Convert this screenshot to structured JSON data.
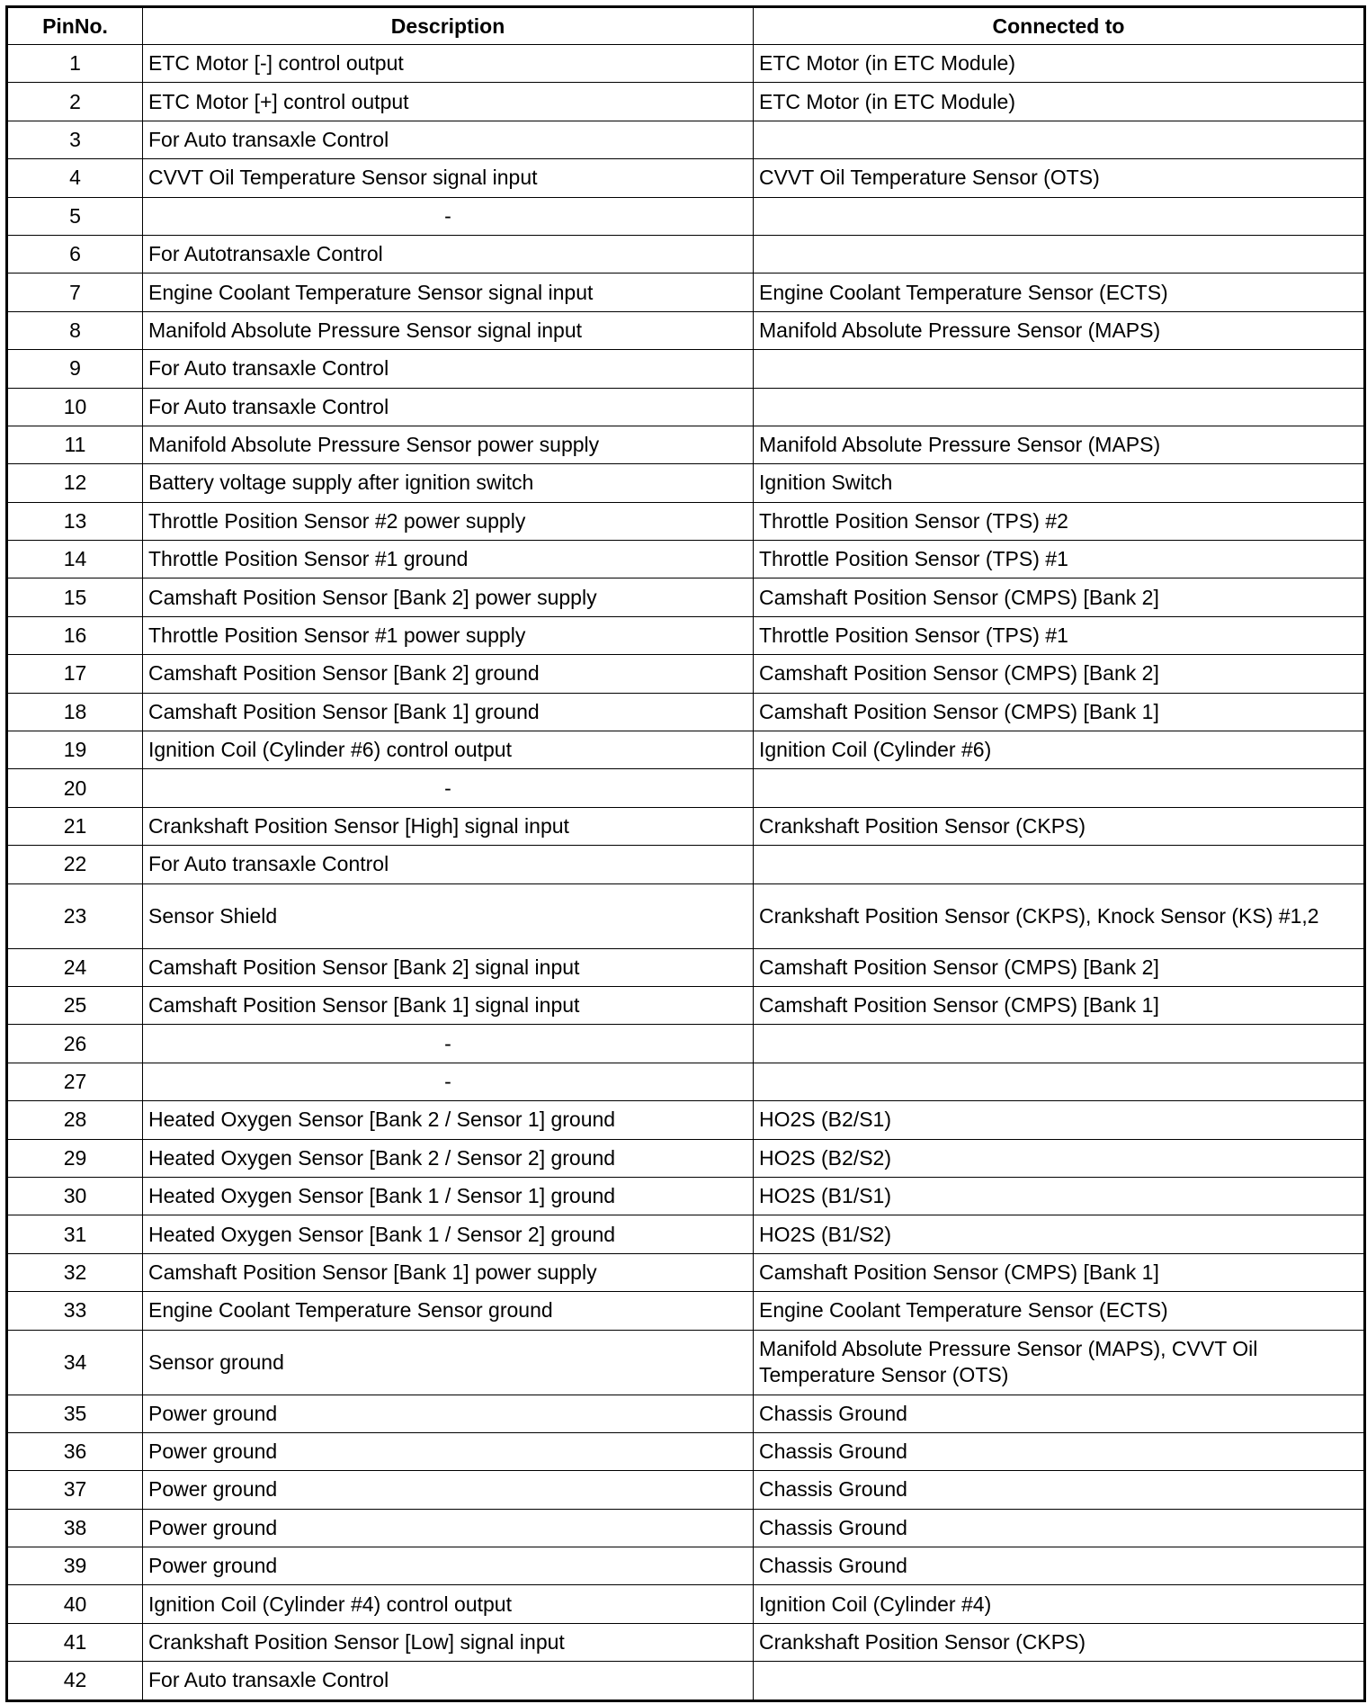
{
  "table": {
    "headers": [
      "PinNo.",
      "Description",
      "Connected to"
    ],
    "rows": [
      {
        "pin": "1",
        "description": "ETC Motor [-] control output",
        "connected": "ETC Motor (in ETC Module)"
      },
      {
        "pin": "2",
        "description": "ETC Motor [+] control output",
        "connected": "ETC Motor (in ETC Module)"
      },
      {
        "pin": "3",
        "description": "For Auto transaxle Control",
        "connected": ""
      },
      {
        "pin": "4",
        "description": "CVVT Oil Temperature Sensor signal input",
        "connected": "CVVT Oil Temperature Sensor (OTS)"
      },
      {
        "pin": "5",
        "description": "-",
        "connected": ""
      },
      {
        "pin": "6",
        "description": "For Autotransaxle Control",
        "connected": ""
      },
      {
        "pin": "7",
        "description": "Engine Coolant Temperature Sensor signal input",
        "connected": "Engine Coolant Temperature Sensor (ECTS)"
      },
      {
        "pin": "8",
        "description": "Manifold Absolute Pressure Sensor signal input",
        "connected": "Manifold Absolute Pressure Sensor (MAPS)"
      },
      {
        "pin": "9",
        "description": "For Auto transaxle Control",
        "connected": ""
      },
      {
        "pin": "10",
        "description": "For Auto transaxle Control",
        "connected": ""
      },
      {
        "pin": "11",
        "description": "Manifold Absolute Pressure Sensor power supply",
        "connected": "Manifold Absolute Pressure Sensor (MAPS)"
      },
      {
        "pin": "12",
        "description": "Battery voltage supply after ignition switch",
        "connected": "Ignition Switch"
      },
      {
        "pin": "13",
        "description": "Throttle Position Sensor #2 power supply",
        "connected": "Throttle Position Sensor (TPS) #2"
      },
      {
        "pin": "14",
        "description": "Throttle Position Sensor #1 ground",
        "connected": "Throttle Position Sensor (TPS) #1"
      },
      {
        "pin": "15",
        "description": "Camshaft Position Sensor [Bank 2] power supply",
        "connected": "Camshaft Position Sensor (CMPS) [Bank 2]"
      },
      {
        "pin": "16",
        "description": "Throttle Position Sensor #1 power supply",
        "connected": "Throttle Position Sensor (TPS) #1"
      },
      {
        "pin": "17",
        "description": "Camshaft Position Sensor [Bank 2] ground",
        "connected": "Camshaft Position Sensor (CMPS) [Bank 2]"
      },
      {
        "pin": "18",
        "description": "Camshaft Position Sensor [Bank 1] ground",
        "connected": "Camshaft Position Sensor (CMPS) [Bank 1]"
      },
      {
        "pin": "19",
        "description": "Ignition Coil (Cylinder #6) control output",
        "connected": "Ignition Coil (Cylinder #6)"
      },
      {
        "pin": "20",
        "description": "-",
        "connected": ""
      },
      {
        "pin": "21",
        "description": "Crankshaft Position Sensor [High] signal input",
        "connected": "Crankshaft Position Sensor (CKPS)"
      },
      {
        "pin": "22",
        "description": "For Auto transaxle Control",
        "connected": ""
      },
      {
        "pin": "23",
        "description": "Sensor Shield",
        "connected": "Crankshaft Position Sensor (CKPS), Knock Sensor (KS) #1,2"
      },
      {
        "pin": "24",
        "description": "Camshaft Position Sensor [Bank 2] signal input",
        "connected": "Camshaft Position Sensor (CMPS) [Bank 2]"
      },
      {
        "pin": "25",
        "description": "Camshaft Position Sensor [Bank 1] signal input",
        "connected": "Camshaft Position Sensor (CMPS) [Bank 1]"
      },
      {
        "pin": "26",
        "description": "-",
        "connected": ""
      },
      {
        "pin": "27",
        "description": "-",
        "connected": ""
      },
      {
        "pin": "28",
        "description": "Heated Oxygen Sensor [Bank 2 / Sensor 1] ground",
        "connected": "HO2S (B2/S1)"
      },
      {
        "pin": "29",
        "description": "Heated Oxygen Sensor [Bank 2 / Sensor 2] ground",
        "connected": "HO2S (B2/S2)"
      },
      {
        "pin": "30",
        "description": "Heated Oxygen Sensor [Bank 1 / Sensor 1] ground",
        "connected": "HO2S (B1/S1)"
      },
      {
        "pin": "31",
        "description": "Heated Oxygen Sensor [Bank 1 / Sensor 2] ground",
        "connected": "HO2S (B1/S2)"
      },
      {
        "pin": "32",
        "description": "Camshaft Position Sensor [Bank 1] power supply",
        "connected": "Camshaft Position Sensor (CMPS) [Bank 1]"
      },
      {
        "pin": "33",
        "description": "Engine Coolant Temperature Sensor ground",
        "connected": "Engine Coolant Temperature Sensor (ECTS)"
      },
      {
        "pin": "34",
        "description": "Sensor ground",
        "connected": "Manifold Absolute Pressure Sensor (MAPS), CVVT Oil Temperature Sensor (OTS)"
      },
      {
        "pin": "35",
        "description": "Power ground",
        "connected": "Chassis Ground"
      },
      {
        "pin": "36",
        "description": "Power ground",
        "connected": "Chassis Ground"
      },
      {
        "pin": "37",
        "description": "Power ground",
        "connected": "Chassis Ground"
      },
      {
        "pin": "38",
        "description": "Power ground",
        "connected": "Chassis Ground"
      },
      {
        "pin": "39",
        "description": "Power ground",
        "connected": "Chassis Ground"
      },
      {
        "pin": "40",
        "description": "Ignition Coil (Cylinder #4) control output",
        "connected": "Ignition Coil (Cylinder #4)"
      },
      {
        "pin": "41",
        "description": "Crankshaft Position Sensor [Low] signal input",
        "connected": "Crankshaft Position Sensor (CKPS)"
      },
      {
        "pin": "42",
        "description": "For Auto transaxle Control",
        "connected": ""
      }
    ]
  }
}
